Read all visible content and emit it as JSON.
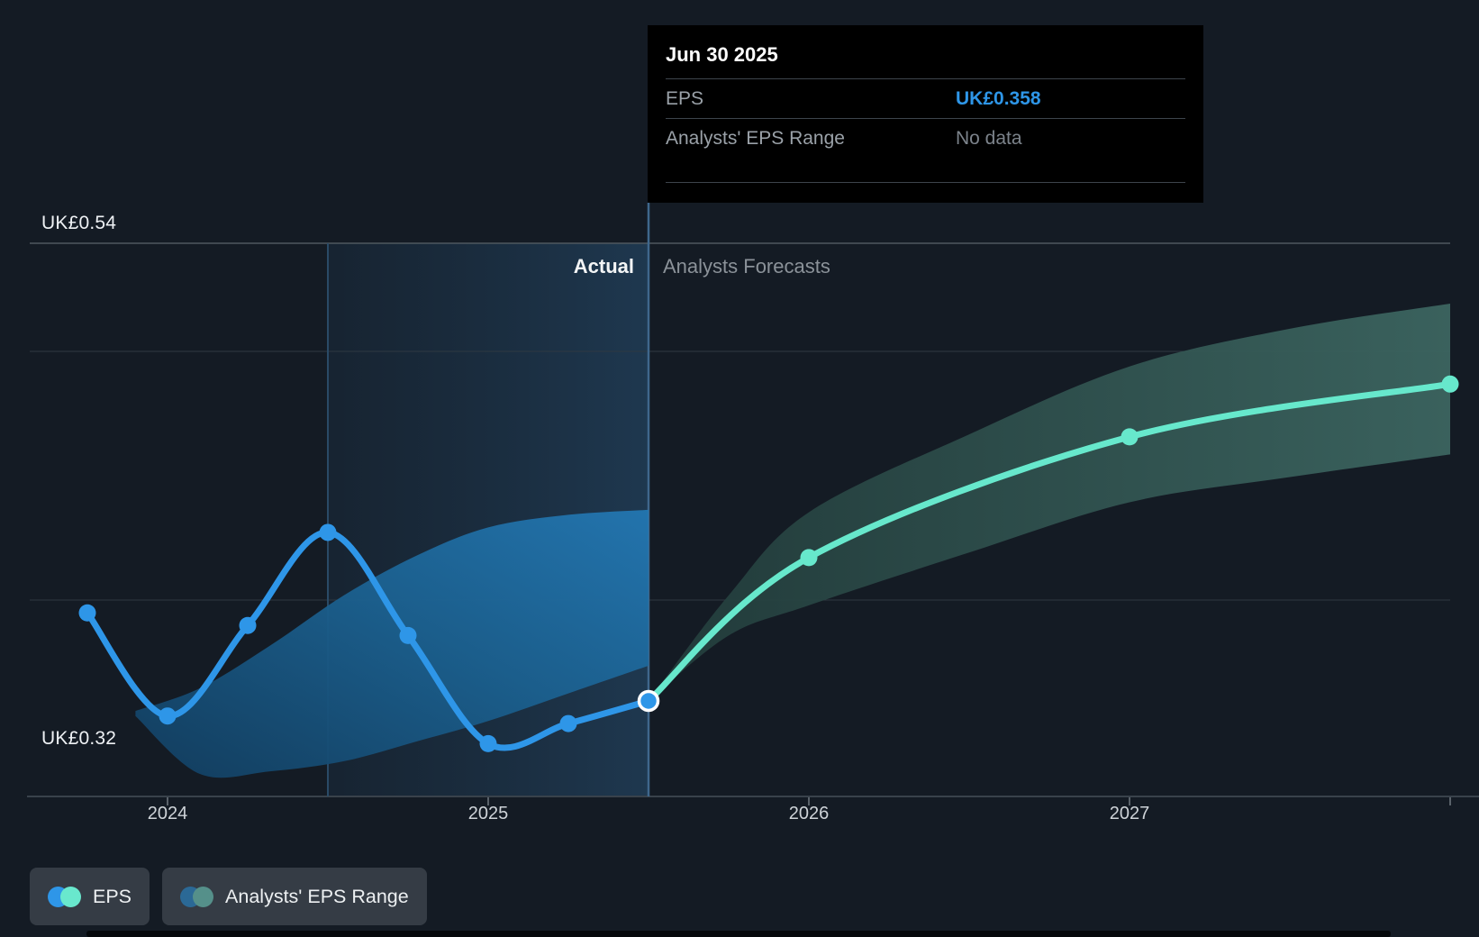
{
  "tooltip": {
    "date": "Jun 30 2025",
    "rows": [
      {
        "label": "EPS",
        "value": "UK£0.358"
      },
      {
        "label": "Analysts' EPS Range",
        "value": "No data"
      }
    ]
  },
  "labels": {
    "actual": "Actual",
    "forecast": "Analysts Forecasts",
    "y_top": "UK£0.54",
    "y_bottom": "UK£0.32"
  },
  "legend": {
    "items": [
      {
        "label": "EPS",
        "dot_left": "#2e96e8",
        "dot_right": "#69e8cd"
      },
      {
        "label": "Analysts' EPS Range",
        "dot_left": "#2b6996",
        "dot_right": "#55908a"
      }
    ]
  },
  "colors": {
    "background": "#141b24",
    "eps_line": "#2e96e8",
    "forecast_line": "#67e8cc",
    "eps_value_text": "#2e96e8",
    "actual_range_fill": "#1b608f",
    "forecast_range_fill": "#33554f",
    "tooltip_bg": "#000000",
    "legend_pill_bg": "#353c45",
    "divider_line": "#3f678c",
    "gridline_top": "#4e585f"
  },
  "chart_data": {
    "type": "line",
    "grid": true,
    "legend_position": "bottom-left",
    "y_axis": {
      "unit": "UK£",
      "top_label": "UK£0.54",
      "bottom_label": "UK£0.32",
      "top_value": 0.54,
      "bottom_value": 0.32
    },
    "x_ticks": [
      {
        "t": 2024,
        "label": "2024"
      },
      {
        "t": 2025,
        "label": "2025"
      },
      {
        "t": 2026,
        "label": "2026"
      },
      {
        "t": 2027,
        "label": "2027"
      },
      {
        "t": 2028,
        "label": ""
      }
    ],
    "divider": {
      "t": 2025.5,
      "actual_label": "Actual",
      "forecast_label": "Analysts Forecasts"
    },
    "highlight": {
      "from_t": 2024.5,
      "to_t": 2025.5
    },
    "series": [
      {
        "name": "EPS",
        "role": "actual",
        "color": "#2e96e8",
        "points": [
          {
            "t": 2023.75,
            "v": 0.393,
            "dot": true
          },
          {
            "t": 2024.0,
            "v": 0.352,
            "dot": true
          },
          {
            "t": 2024.25,
            "v": 0.388,
            "dot": true
          },
          {
            "t": 2024.5,
            "v": 0.425,
            "dot": true
          },
          {
            "t": 2024.75,
            "v": 0.384,
            "dot": true
          },
          {
            "t": 2025.0,
            "v": 0.341,
            "dot": true
          },
          {
            "t": 2025.25,
            "v": 0.349,
            "dot": true
          },
          {
            "t": 2025.5,
            "v": 0.358,
            "dot": true,
            "ring": true
          }
        ]
      },
      {
        "name": "EPS forecast",
        "role": "forecast",
        "color": "#67e8cc",
        "points": [
          {
            "t": 2025.5,
            "v": 0.358,
            "dot": false
          },
          {
            "t": 2026.0,
            "v": 0.415,
            "dot": true
          },
          {
            "t": 2027.0,
            "v": 0.463,
            "dot": true
          },
          {
            "t": 2028.0,
            "v": 0.484,
            "dot": true
          }
        ]
      }
    ],
    "bands": [
      {
        "name": "Analysts' EPS Range (actual period)",
        "fill": "gradient-blue",
        "points": [
          {
            "t": 2023.9,
            "lo": 0.352,
            "hi": 0.354
          },
          {
            "t": 2024.1,
            "lo": 0.329,
            "hi": 0.363
          },
          {
            "t": 2024.32,
            "lo": 0.33,
            "hi": 0.38
          },
          {
            "t": 2024.55,
            "lo": 0.334,
            "hi": 0.4
          },
          {
            "t": 2024.78,
            "lo": 0.342,
            "hi": 0.416
          },
          {
            "t": 2025.0,
            "lo": 0.35,
            "hi": 0.427
          },
          {
            "t": 2025.25,
            "lo": 0.361,
            "hi": 0.432
          },
          {
            "t": 2025.5,
            "lo": 0.372,
            "hi": 0.434
          }
        ]
      },
      {
        "name": "Analysts' EPS Range (forecast)",
        "fill": "gradient-teal",
        "points": [
          {
            "t": 2025.5,
            "lo": 0.358,
            "hi": 0.358
          },
          {
            "t": 2025.75,
            "lo": 0.384,
            "hi": 0.4
          },
          {
            "t": 2026.0,
            "lo": 0.396,
            "hi": 0.433
          },
          {
            "t": 2026.5,
            "lo": 0.417,
            "hi": 0.464
          },
          {
            "t": 2027.0,
            "lo": 0.437,
            "hi": 0.491
          },
          {
            "t": 2027.5,
            "lo": 0.447,
            "hi": 0.506
          },
          {
            "t": 2028.0,
            "lo": 0.456,
            "hi": 0.516
          }
        ]
      }
    ]
  }
}
